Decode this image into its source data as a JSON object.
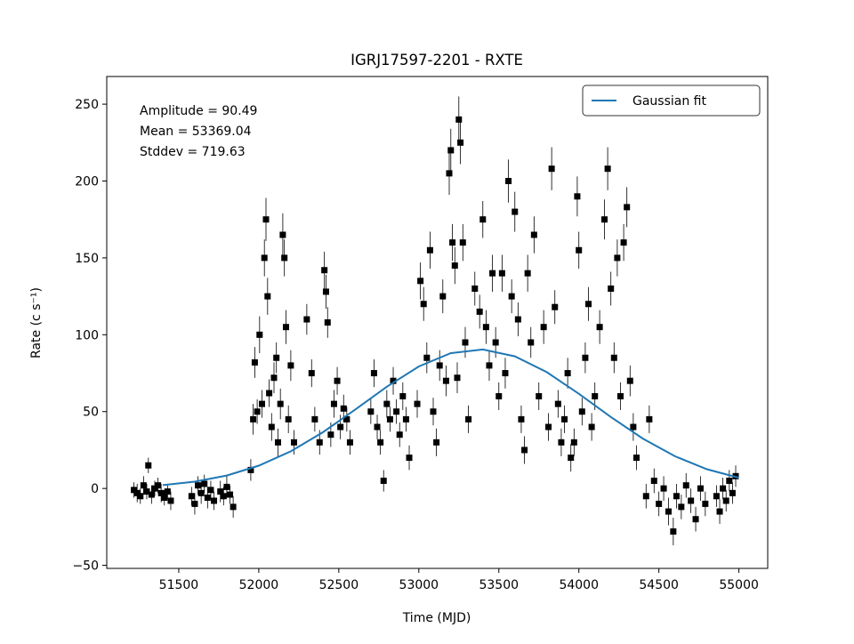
{
  "chart_data": {
    "type": "scatter",
    "title": "IGRJ17597-2201 - RXTE",
    "xlabel": "Time (MJD)",
    "ylabel": "Rate (c s⁻¹)",
    "annotations": [
      "Amplitude = 90.49",
      "Mean = 53369.04",
      "Stddev = 719.63"
    ],
    "xlim": [
      51050,
      55180
    ],
    "ylim": [
      -52,
      268
    ],
    "xticks": [
      51500,
      52000,
      52500,
      53000,
      53500,
      54000,
      54500,
      55000
    ],
    "yticks": [
      {
        "value": -50,
        "label": "−50"
      },
      0,
      50,
      100,
      150,
      200,
      250
    ],
    "legend": "upper right",
    "series": [
      {
        "type": "errorbar",
        "color": "#000000",
        "x": [
          51220,
          51240,
          51260,
          51280,
          51300,
          51310,
          51330,
          51350,
          51370,
          51390,
          51410,
          51430,
          51450,
          51580,
          51600,
          51620,
          51640,
          51660,
          51680,
          51700,
          51720,
          51760,
          51780,
          51800,
          51820,
          51840,
          51950,
          51965,
          51975,
          51990,
          52005,
          52020,
          52035,
          52045,
          52055,
          52065,
          52080,
          52095,
          52110,
          52120,
          52135,
          52150,
          52160,
          52170,
          52185,
          52200,
          52220,
          52300,
          52330,
          52350,
          52380,
          52410,
          52420,
          52430,
          52450,
          52470,
          52490,
          52510,
          52530,
          52550,
          52570,
          52700,
          52720,
          52740,
          52760,
          52780,
          52800,
          52820,
          52840,
          52860,
          52880,
          52900,
          52920,
          52940,
          52990,
          53010,
          53030,
          53050,
          53070,
          53090,
          53110,
          53130,
          53150,
          53170,
          53190,
          53200,
          53210,
          53225,
          53240,
          53250,
          53260,
          53275,
          53290,
          53310,
          53350,
          53380,
          53400,
          53420,
          53440,
          53460,
          53480,
          53500,
          53520,
          53540,
          53560,
          53580,
          53600,
          53620,
          53640,
          53660,
          53680,
          53700,
          53720,
          53750,
          53780,
          53810,
          53830,
          53850,
          53870,
          53890,
          53910,
          53930,
          53950,
          53970,
          53990,
          54000,
          54020,
          54040,
          54060,
          54080,
          54100,
          54130,
          54160,
          54180,
          54200,
          54220,
          54240,
          54260,
          54280,
          54300,
          54320,
          54340,
          54360,
          54420,
          54440,
          54470,
          54500,
          54530,
          54560,
          54590,
          54610,
          54640,
          54670,
          54700,
          54730,
          54760,
          54790,
          54860,
          54880,
          54900,
          54920,
          54940,
          54960,
          54980
        ],
        "values": [
          -1,
          -3,
          -5,
          2,
          -2,
          15,
          -4,
          0,
          2,
          -3,
          -6,
          -2,
          -8,
          -5,
          -10,
          2,
          -3,
          3,
          -6,
          -1,
          -8,
          -2,
          -5,
          1,
          -4,
          -12,
          12,
          45,
          82,
          50,
          100,
          55,
          150,
          175,
          125,
          62,
          40,
          72,
          85,
          30,
          55,
          165,
          150,
          105,
          45,
          80,
          30,
          110,
          75,
          45,
          30,
          142,
          128,
          108,
          35,
          55,
          70,
          40,
          52,
          45,
          30,
          50,
          75,
          40,
          30,
          5,
          55,
          45,
          70,
          50,
          35,
          60,
          45,
          20,
          55,
          135,
          120,
          85,
          155,
          50,
          30,
          80,
          125,
          70,
          205,
          220,
          160,
          145,
          72,
          240,
          225,
          160,
          95,
          45,
          130,
          115,
          175,
          105,
          80,
          140,
          95,
          60,
          140,
          75,
          200,
          125,
          180,
          110,
          45,
          25,
          140,
          95,
          165,
          60,
          105,
          40,
          208,
          118,
          55,
          30,
          45,
          75,
          20,
          30,
          190,
          155,
          50,
          85,
          120,
          40,
          60,
          105,
          175,
          208,
          130,
          85,
          150,
          60,
          160,
          183,
          70,
          40,
          20,
          -5,
          45,
          5,
          -10,
          0,
          -15,
          -28,
          -5,
          -12,
          2,
          -8,
          -20,
          0,
          -10,
          -5,
          -15,
          0,
          -8,
          5,
          -3,
          8
        ],
        "errors": [
          5,
          6,
          5,
          6,
          5,
          5,
          6,
          5,
          5,
          6,
          5,
          5,
          6,
          6,
          7,
          6,
          7,
          6,
          7,
          6,
          6,
          7,
          6,
          7,
          6,
          7,
          7,
          10,
          10,
          8,
          12,
          9,
          12,
          14,
          12,
          9,
          9,
          10,
          10,
          9,
          10,
          14,
          12,
          11,
          9,
          10,
          8,
          10,
          9,
          8,
          8,
          12,
          11,
          10,
          8,
          9,
          9,
          8,
          9,
          8,
          8,
          8,
          9,
          8,
          8,
          7,
          9,
          8,
          9,
          8,
          8,
          9,
          8,
          8,
          9,
          12,
          11,
          10,
          12,
          9,
          9,
          10,
          11,
          10,
          14,
          14,
          12,
          12,
          10,
          15,
          14,
          12,
          10,
          9,
          11,
          11,
          12,
          11,
          10,
          12,
          10,
          9,
          12,
          10,
          14,
          11,
          13,
          11,
          9,
          9,
          12,
          10,
          12,
          9,
          11,
          9,
          14,
          11,
          9,
          9,
          9,
          10,
          9,
          9,
          13,
          12,
          9,
          10,
          11,
          9,
          9,
          11,
          13,
          14,
          11,
          10,
          12,
          9,
          12,
          13,
          10,
          9,
          8,
          8,
          9,
          8,
          8,
          8,
          9,
          9,
          8,
          8,
          8,
          8,
          8,
          8,
          8,
          7,
          8,
          7,
          7,
          7,
          7,
          7
        ]
      },
      {
        "type": "line",
        "name": "Gaussian fit",
        "color": "#1f77b4",
        "x": [
          51400,
          51600,
          51800,
          52000,
          52200,
          52400,
          52600,
          52800,
          53000,
          53200,
          53400,
          53600,
          53800,
          54000,
          54200,
          54400,
          54600,
          54800,
          55000
        ],
        "values": [
          2.15,
          4.41,
          8.41,
          14.81,
          24.17,
          36.53,
          51.1,
          66.19,
          79.34,
          88.03,
          90.41,
          85.95,
          75.64,
          61.62,
          46.47,
          32.43,
          20.96,
          12.53,
          6.94
        ]
      }
    ]
  }
}
